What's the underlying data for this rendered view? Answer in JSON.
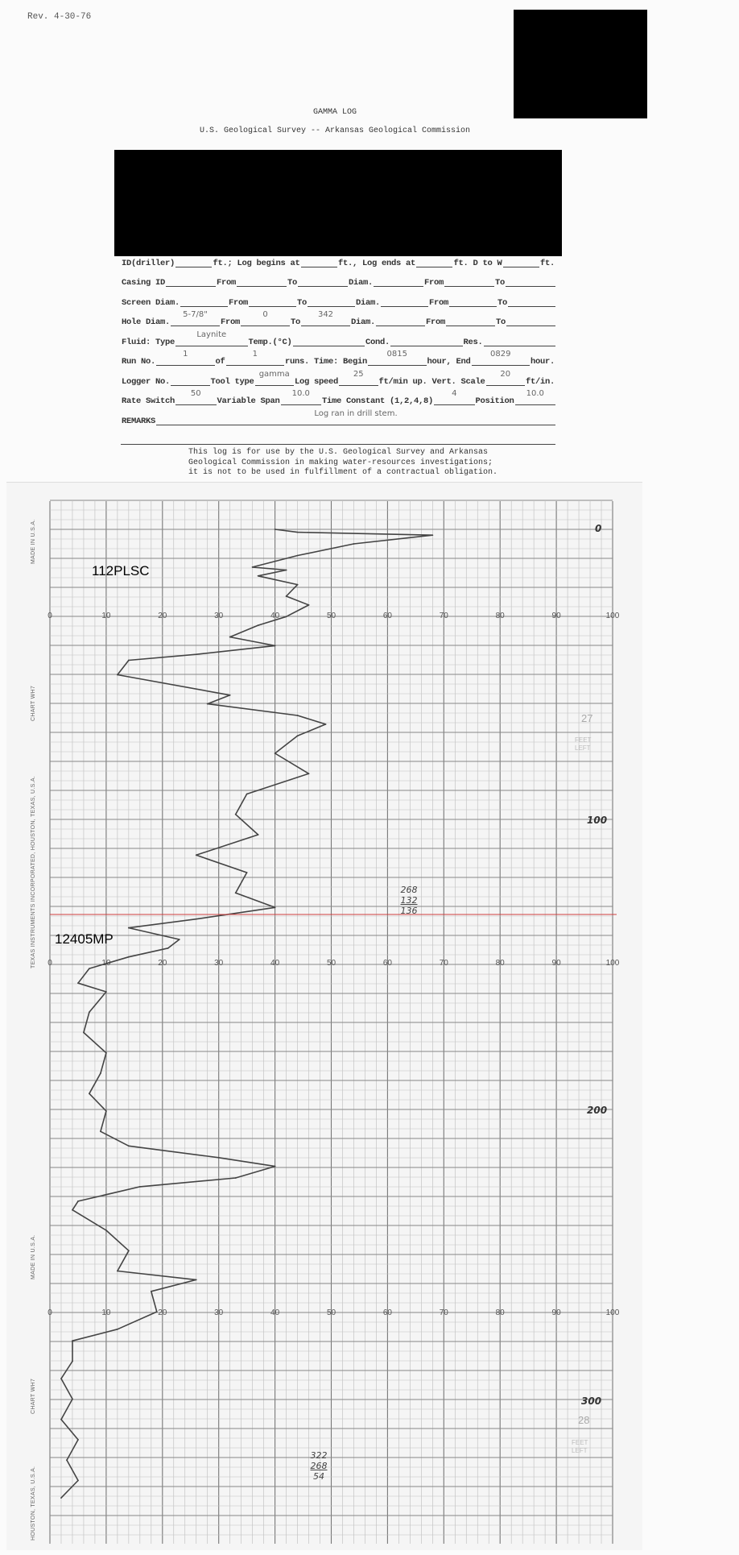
{
  "header": {
    "revision": "Rev. 4-30-76",
    "title": "GAMMA LOG",
    "agency": "U.S. Geological Survey -- Arkansas Geological Commission"
  },
  "form": {
    "rows": [
      [
        {
          "label": "ID(driller)"
        },
        {
          "value": ""
        },
        {
          "label": "ft.; Log begins at"
        },
        {
          "value": ""
        },
        {
          "label": "ft., Log ends at"
        },
        {
          "value": ""
        },
        {
          "label": "ft. D to W"
        },
        {
          "value": ""
        },
        {
          "label": "ft."
        }
      ],
      [
        {
          "label": "Casing ID"
        },
        {
          "value": ""
        },
        {
          "label": "From"
        },
        {
          "value": ""
        },
        {
          "label": "To"
        },
        {
          "value": ""
        },
        {
          "label": "Diam."
        },
        {
          "value": ""
        },
        {
          "label": "From"
        },
        {
          "value": ""
        },
        {
          "label": "To"
        },
        {
          "value": ""
        }
      ],
      [
        {
          "label": "Screen Diam."
        },
        {
          "value": ""
        },
        {
          "label": "From"
        },
        {
          "value": ""
        },
        {
          "label": "To"
        },
        {
          "value": ""
        },
        {
          "label": "Diam."
        },
        {
          "value": ""
        },
        {
          "label": "From"
        },
        {
          "value": ""
        },
        {
          "label": "To"
        },
        {
          "value": ""
        }
      ],
      [
        {
          "label": "Hole Diam."
        },
        {
          "value": "5-7/8\""
        },
        {
          "label": "From"
        },
        {
          "value": "0"
        },
        {
          "label": "To"
        },
        {
          "value": "342"
        },
        {
          "label": "Diam."
        },
        {
          "value": ""
        },
        {
          "label": "From"
        },
        {
          "value": ""
        },
        {
          "label": "To"
        },
        {
          "value": ""
        }
      ],
      [
        {
          "label": "Fluid:  Type"
        },
        {
          "value": "Laynite"
        },
        {
          "label": "Temp.(°C)"
        },
        {
          "value": ""
        },
        {
          "label": "Cond."
        },
        {
          "value": ""
        },
        {
          "label": "Res."
        },
        {
          "value": ""
        }
      ],
      [
        {
          "label": "Run No."
        },
        {
          "value": "1"
        },
        {
          "label": "of"
        },
        {
          "value": "1"
        },
        {
          "label": "runs.  Time: Begin"
        },
        {
          "value": "0815"
        },
        {
          "label": "hour, End"
        },
        {
          "value": "0829"
        },
        {
          "label": "hour."
        }
      ],
      [
        {
          "label": "Logger No."
        },
        {
          "value": ""
        },
        {
          "label": "Tool type"
        },
        {
          "value": "gamma"
        },
        {
          "label": "Log speed"
        },
        {
          "value": "25"
        },
        {
          "label": "ft/min up. Vert. Scale"
        },
        {
          "value": "20"
        },
        {
          "label": "ft/in."
        }
      ],
      [
        {
          "label": "Rate Switch"
        },
        {
          "value": "50"
        },
        {
          "label": "Variable Span"
        },
        {
          "value": "10.0"
        },
        {
          "label": "Time Constant (1,2,4,8)"
        },
        {
          "value": "4"
        },
        {
          "label": "Position"
        },
        {
          "value": "10.0"
        }
      ],
      [
        {
          "label": "REMARKS"
        },
        {
          "value": "Log ran in drill stem."
        }
      ],
      [
        {
          "value": ""
        }
      ]
    ]
  },
  "disclaimer": [
    "This log is for use by the U.S. Geological Survey and Arkansas",
    "Geological Commission in making water-resources investigations;",
    "it is not to be used in fulfillment of a contractual obligation."
  ],
  "chart_paper": {
    "side_labels": [
      "MADE IN U.S.A.",
      "CHART WH7",
      "TEXAS INSTRUMENTS INCORPORATED, HOUSTON, TEXAS, U.S.A.",
      "MADE IN U.S.A.",
      "CHART WH7",
      "HOUSTON, TEXAS, U.S.A."
    ],
    "stamps": [
      "112PLSC",
      "12405MP"
    ],
    "feet_left": [
      {
        "count": "27",
        "label": "FEET LEFT"
      },
      {
        "count": "28",
        "label": "FEET LEFT"
      }
    ],
    "annotations": [
      [
        "268",
        "132",
        "136"
      ],
      [
        "322",
        "268",
        "54"
      ]
    ],
    "marker_color": "#d04040"
  },
  "chart_data": {
    "type": "line",
    "x_ticks": [
      "0",
      "10",
      "20",
      "30",
      "40",
      "50",
      "60",
      "70",
      "80",
      "90",
      "100"
    ],
    "xlim": [
      0,
      100
    ],
    "depth_labels": [
      "0",
      "100",
      "200",
      "300"
    ],
    "ylim_depth": [
      0,
      342
    ],
    "grid": true,
    "series": [
      {
        "depth": [
          0,
          1,
          2,
          5,
          9,
          13,
          14,
          16,
          19,
          23,
          26,
          30,
          33,
          37,
          40,
          43,
          45,
          50,
          57,
          60,
          64,
          67,
          71,
          77,
          84,
          91,
          98,
          105,
          112,
          118,
          125,
          130,
          134,
          137,
          141,
          144,
          147,
          151,
          156,
          159,
          166,
          173,
          180,
          187,
          194,
          200,
          207,
          212,
          216,
          219,
          223,
          226,
          231,
          234,
          241,
          248,
          255,
          258,
          262,
          269,
          275,
          279,
          286,
          292,
          299,
          306,
          313,
          320,
          327,
          333
        ],
        "value": [
          40,
          44,
          68,
          54,
          44,
          36,
          42,
          37,
          44,
          42,
          46,
          42,
          37,
          32,
          40,
          26,
          14,
          12,
          32,
          28,
          44,
          49,
          44,
          40,
          46,
          35,
          33,
          37,
          26,
          35,
          33,
          40,
          26,
          14,
          23,
          21,
          14,
          7,
          5,
          10,
          7,
          6,
          10,
          9,
          7,
          10,
          9,
          14,
          30,
          40,
          33,
          16,
          5,
          4,
          10,
          14,
          12,
          26,
          18,
          19,
          12,
          4,
          4,
          2,
          4,
          2,
          5,
          3,
          5,
          2
        ]
      }
    ]
  }
}
